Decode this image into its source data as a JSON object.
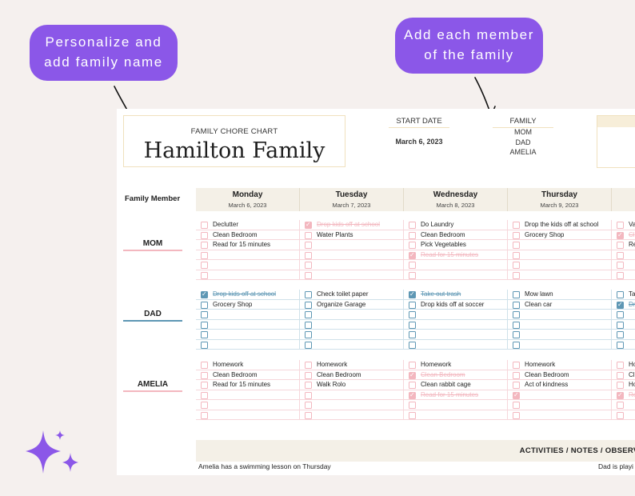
{
  "callouts": {
    "left": [
      "Personalize and",
      "add family name"
    ],
    "right": [
      "Add each member",
      "of the family"
    ]
  },
  "colors": {
    "accent": "#8b57e8",
    "mom": "#f3b7bf",
    "dad": "#5e97b4",
    "amelia": "#f3b7bf",
    "header_fill": "#f4f0e7"
  },
  "chart": {
    "label": "FAMILY CHORE CHART",
    "family_name": "Hamilton Family",
    "start_date_label": "START DATE",
    "start_date": "March 6, 2023",
    "family_label": "FAMILY",
    "family_members": [
      "MOM",
      "DAD",
      "AMELIA"
    ]
  },
  "grid": {
    "member_header": "Family Member",
    "days": [
      {
        "name": "Monday",
        "date": "March 6, 2023"
      },
      {
        "name": "Tuesday",
        "date": "March 7, 2023"
      },
      {
        "name": "Wednesday",
        "date": "March 8, 2023"
      },
      {
        "name": "Thursday",
        "date": "March 9, 2023"
      },
      {
        "name": "",
        "date": ""
      }
    ],
    "members": [
      {
        "name": "MOM",
        "color_key": "mom",
        "days": [
          [
            {
              "t": "Declutter",
              "d": false
            },
            {
              "t": "Clean Bedroom",
              "d": false
            },
            {
              "t": "Read for 15 minutes",
              "d": false
            },
            {
              "t": "",
              "d": false
            },
            {
              "t": "",
              "d": false
            },
            {
              "t": "",
              "d": false
            }
          ],
          [
            {
              "t": "Drop kids off at school",
              "d": true
            },
            {
              "t": "Water Plants",
              "d": false
            },
            {
              "t": "",
              "d": false
            },
            {
              "t": "",
              "d": false
            },
            {
              "t": "",
              "d": false
            },
            {
              "t": "",
              "d": false
            }
          ],
          [
            {
              "t": "Do Laundry",
              "d": false
            },
            {
              "t": "Clean Bedroom",
              "d": false
            },
            {
              "t": "Pick Vegetables",
              "d": false
            },
            {
              "t": "Read for 15 minutes",
              "d": true
            },
            {
              "t": "",
              "d": false
            },
            {
              "t": "",
              "d": false
            }
          ],
          [
            {
              "t": "Drop the kids off at school",
              "d": false
            },
            {
              "t": "Grocery Shop",
              "d": false
            },
            {
              "t": "",
              "d": false
            },
            {
              "t": "",
              "d": false
            },
            {
              "t": "",
              "d": false
            },
            {
              "t": "",
              "d": false
            }
          ],
          [
            {
              "t": "Va",
              "d": false
            },
            {
              "t": "Cl",
              "d": true
            },
            {
              "t": "Re",
              "d": false
            },
            {
              "t": "",
              "d": false
            },
            {
              "t": "",
              "d": false
            },
            {
              "t": "",
              "d": false
            }
          ]
        ]
      },
      {
        "name": "DAD",
        "color_key": "dad",
        "days": [
          [
            {
              "t": "Drop kids off at school",
              "d": true
            },
            {
              "t": "Grocery Shop",
              "d": false
            },
            {
              "t": "",
              "d": false
            },
            {
              "t": "",
              "d": false
            },
            {
              "t": "",
              "d": false
            },
            {
              "t": "",
              "d": false
            }
          ],
          [
            {
              "t": "Check toilet paper",
              "d": false
            },
            {
              "t": "Organize Garage",
              "d": false
            },
            {
              "t": "",
              "d": false
            },
            {
              "t": "",
              "d": false
            },
            {
              "t": "",
              "d": false
            },
            {
              "t": "",
              "d": false
            }
          ],
          [
            {
              "t": "Take out trash",
              "d": true
            },
            {
              "t": "Drop kids off at soccer",
              "d": false
            },
            {
              "t": "",
              "d": false
            },
            {
              "t": "",
              "d": false
            },
            {
              "t": "",
              "d": false
            },
            {
              "t": "",
              "d": false
            }
          ],
          [
            {
              "t": "Mow lawn",
              "d": false
            },
            {
              "t": "Clean car",
              "d": false
            },
            {
              "t": "",
              "d": false
            },
            {
              "t": "",
              "d": false
            },
            {
              "t": "",
              "d": false
            },
            {
              "t": "",
              "d": false
            }
          ],
          [
            {
              "t": "Tal",
              "d": false
            },
            {
              "t": "Dr",
              "d": true
            },
            {
              "t": "",
              "d": false
            },
            {
              "t": "",
              "d": false
            },
            {
              "t": "",
              "d": false
            },
            {
              "t": "",
              "d": false
            }
          ]
        ]
      },
      {
        "name": "AMELIA",
        "color_key": "amelia",
        "days": [
          [
            {
              "t": "Homework",
              "d": false
            },
            {
              "t": "Clean Bedroom",
              "d": false
            },
            {
              "t": "Read for 15 minutes",
              "d": false
            },
            {
              "t": "",
              "d": false
            },
            {
              "t": "",
              "d": false
            },
            {
              "t": "",
              "d": false
            }
          ],
          [
            {
              "t": "Homework",
              "d": false
            },
            {
              "t": "Clean Bedroom",
              "d": false
            },
            {
              "t": "Walk Rolo",
              "d": false
            },
            {
              "t": "",
              "d": false
            },
            {
              "t": "",
              "d": false
            },
            {
              "t": "",
              "d": false
            }
          ],
          [
            {
              "t": "Homework",
              "d": false
            },
            {
              "t": "Clean Bedroom",
              "d": true
            },
            {
              "t": "Clean rabbit cage",
              "d": false
            },
            {
              "t": "Read for 15 minutes",
              "d": true
            },
            {
              "t": "",
              "d": false
            },
            {
              "t": "",
              "d": false
            }
          ],
          [
            {
              "t": "Homework",
              "d": false
            },
            {
              "t": "Clean Bedroom",
              "d": false
            },
            {
              "t": "Act of kindness",
              "d": false
            },
            {
              "t": "",
              "d": true
            },
            {
              "t": "",
              "d": false
            },
            {
              "t": "",
              "d": false
            }
          ],
          [
            {
              "t": "Ho",
              "d": false
            },
            {
              "t": "Cl",
              "d": false
            },
            {
              "t": "Ho",
              "d": false
            },
            {
              "t": "Re",
              "d": true
            },
            {
              "t": "",
              "d": false
            },
            {
              "t": "",
              "d": false
            }
          ]
        ]
      }
    ]
  },
  "notes": {
    "title": "ACTIVITIES / NOTES / OBSERVA",
    "left": "Amelia has a swimming lesson on Thursday",
    "right": "Dad is playi"
  }
}
